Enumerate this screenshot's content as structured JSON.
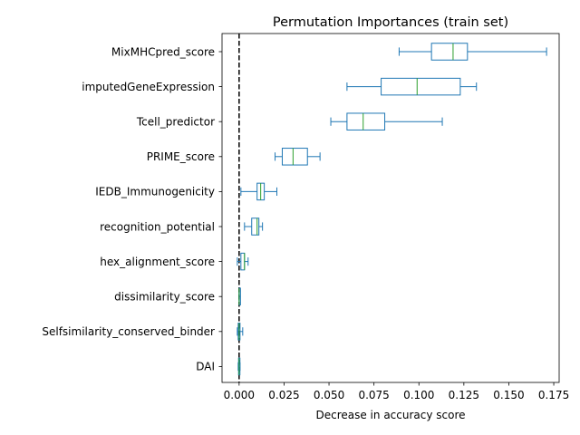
{
  "chart_data": {
    "type": "box",
    "orientation": "horizontal",
    "title": "Permutation Importances (train set)",
    "xlabel": "Decrease in accuracy score",
    "ylabel": "",
    "xlim": [
      -0.0095,
      0.178
    ],
    "x_ticks": [
      0.0,
      0.025,
      0.05,
      0.075,
      0.1,
      0.125,
      0.15,
      0.175
    ],
    "x_tick_labels": [
      "0.000",
      "0.025",
      "0.050",
      "0.075",
      "0.100",
      "0.125",
      "0.150",
      "0.175"
    ],
    "reference_line": {
      "x": 0.0,
      "style": "dashed",
      "color": "#000000"
    },
    "grid": false,
    "colors": {
      "box": "#1f77b4",
      "median": "#2ca02c"
    },
    "categories": [
      "MixMHCpred_score",
      "imputedGeneExpression",
      "Tcell_predictor",
      "PRIME_score",
      "IEDB_Immunogenicity",
      "recognition_potential",
      "hex_alignment_score",
      "dissimilarity_score",
      "Selfsimilarity_conserved_binder",
      "DAI"
    ],
    "boxes": [
      {
        "whislo": 0.089,
        "q1": 0.107,
        "med": 0.119,
        "q3": 0.127,
        "whishi": 0.171
      },
      {
        "whislo": 0.06,
        "q1": 0.079,
        "med": 0.099,
        "q3": 0.123,
        "whishi": 0.132
      },
      {
        "whislo": 0.051,
        "q1": 0.06,
        "med": 0.069,
        "q3": 0.081,
        "whishi": 0.113
      },
      {
        "whislo": 0.02,
        "q1": 0.024,
        "med": 0.03,
        "q3": 0.038,
        "whishi": 0.045
      },
      {
        "whislo": 0.001,
        "q1": 0.01,
        "med": 0.012,
        "q3": 0.014,
        "whishi": 0.021
      },
      {
        "whislo": 0.003,
        "q1": 0.007,
        "med": 0.01,
        "q3": 0.011,
        "whishi": 0.013
      },
      {
        "whislo": -0.001,
        "q1": 0.001,
        "med": 0.003,
        "q3": 0.003,
        "whishi": 0.005
      },
      {
        "whislo": 0.0,
        "q1": 0.0,
        "med": 0.0,
        "q3": 0.0,
        "whishi": 0.0
      },
      {
        "whislo": -0.001,
        "q1": -0.0005,
        "med": 0.0,
        "q3": 0.0005,
        "whishi": 0.002
      },
      {
        "whislo": -0.0005,
        "q1": -0.0003,
        "med": 0.0,
        "q3": 0.0003,
        "whishi": 0.0005
      }
    ]
  }
}
